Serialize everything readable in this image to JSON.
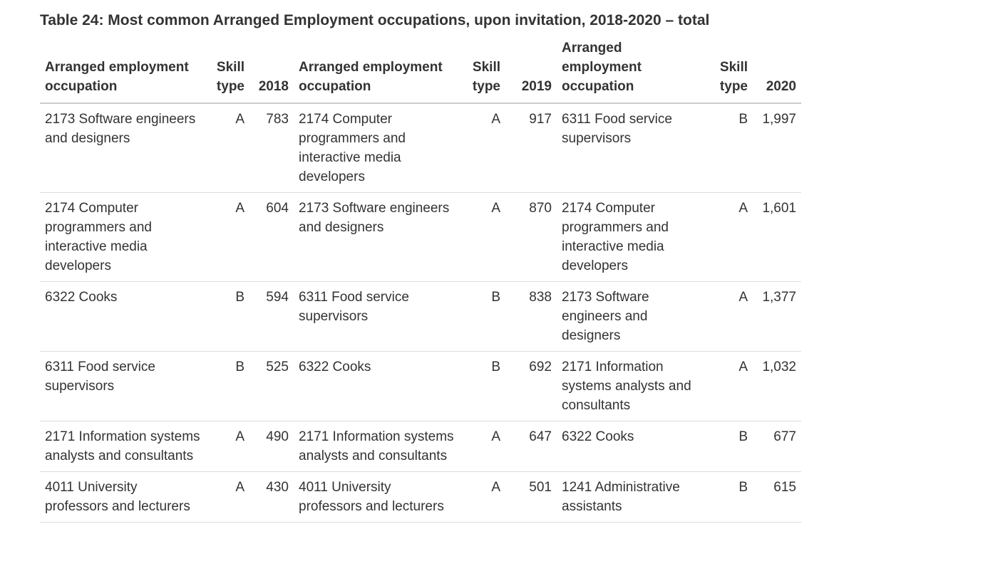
{
  "title": "Table 24: Most common Arranged Employment occupations, upon invitation, 2018-2020 – total",
  "headers": {
    "occ_a": "Arranged employment occupation",
    "skill_a": "Skill type",
    "y2018": "2018",
    "occ_b": "Arranged employment occupation",
    "skill_b": "Skill type",
    "y2019": "2019",
    "occ_c": "Arranged employment occupation",
    "skill_c": "Skill type",
    "y2020": "2020"
  },
  "rows": [
    {
      "occ_a": "2173 Software engineers and designers",
      "skill_a": "A",
      "v2018": "783",
      "occ_b": "2174 Computer programmers and interactive media developers",
      "skill_b": "A",
      "v2019": "917",
      "occ_c": "6311 Food service supervisors",
      "skill_c": "B",
      "v2020": "1,997"
    },
    {
      "occ_a": "2174 Computer programmers and interactive media developers",
      "skill_a": "A",
      "v2018": "604",
      "occ_b": "2173 Software engineers and designers",
      "skill_b": "A",
      "v2019": "870",
      "occ_c": "2174 Computer programmers and interactive media developers",
      "skill_c": "A",
      "v2020": "1,601"
    },
    {
      "occ_a": "6322 Cooks",
      "skill_a": "B",
      "v2018": "594",
      "occ_b": "6311 Food service supervisors",
      "skill_b": "B",
      "v2019": "838",
      "occ_c": "2173 Software engineers and designers",
      "skill_c": "A",
      "v2020": "1,377"
    },
    {
      "occ_a": "6311 Food service supervisors",
      "skill_a": "B",
      "v2018": "525",
      "occ_b": "6322 Cooks",
      "skill_b": "B",
      "v2019": "692",
      "occ_c": "2171 Information systems analysts and consultants",
      "skill_c": "A",
      "v2020": "1,032"
    },
    {
      "occ_a": "2171 Information systems analysts and consultants",
      "skill_a": "A",
      "v2018": "490",
      "occ_b": "2171 Information systems analysts and consultants",
      "skill_b": "A",
      "v2019": "647",
      "occ_c": "6322 Cooks",
      "skill_c": "B",
      "v2020": "677"
    },
    {
      "occ_a": "4011 University professors and lecturers",
      "skill_a": "A",
      "v2018": "430",
      "occ_b": "4011 University professors and lecturers",
      "skill_b": "A",
      "v2019": "501",
      "occ_c": "1241 Administrative assistants",
      "skill_c": "B",
      "v2020": "615"
    }
  ]
}
